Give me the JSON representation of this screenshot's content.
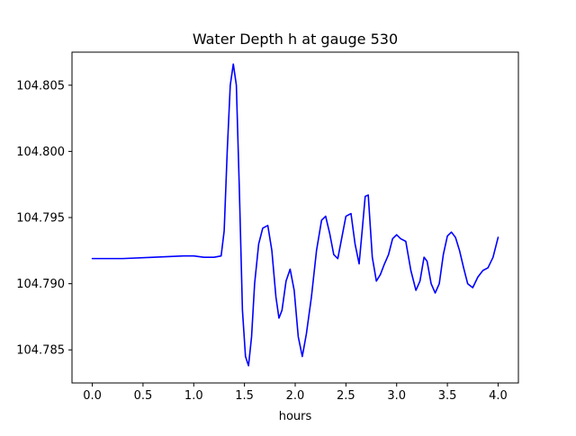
{
  "chart_data": {
    "type": "line",
    "title": "Water Depth h at gauge 530",
    "xlabel": "hours",
    "ylabel": "",
    "xlim": [
      -0.2,
      4.2
    ],
    "ylim": [
      104.7825,
      104.8075
    ],
    "grid": false,
    "xticks": [
      0.0,
      0.5,
      1.0,
      1.5,
      2.0,
      2.5,
      3.0,
      3.5,
      4.0
    ],
    "xtick_labels": [
      "0.0",
      "0.5",
      "1.0",
      "1.5",
      "2.0",
      "2.5",
      "3.0",
      "3.5",
      "4.0"
    ],
    "yticks": [
      104.785,
      104.79,
      104.795,
      104.8,
      104.805
    ],
    "ytick_labels": [
      "104.785",
      "104.790",
      "104.795",
      "104.800",
      "104.805"
    ],
    "series": [
      {
        "color": "#0000ff",
        "x": [
          0.0,
          0.3,
          0.6,
          0.9,
          1.0,
          1.1,
          1.2,
          1.27,
          1.3,
          1.33,
          1.36,
          1.39,
          1.42,
          1.45,
          1.48,
          1.51,
          1.54,
          1.57,
          1.6,
          1.64,
          1.68,
          1.73,
          1.77,
          1.81,
          1.84,
          1.87,
          1.91,
          1.95,
          1.99,
          2.03,
          2.07,
          2.11,
          2.16,
          2.21,
          2.26,
          2.3,
          2.34,
          2.38,
          2.42,
          2.46,
          2.5,
          2.55,
          2.59,
          2.63,
          2.66,
          2.69,
          2.72,
          2.76,
          2.8,
          2.84,
          2.88,
          2.92,
          2.96,
          3.0,
          3.04,
          3.09,
          3.14,
          3.19,
          3.23,
          3.27,
          3.3,
          3.34,
          3.38,
          3.42,
          3.46,
          3.5,
          3.54,
          3.58,
          3.62,
          3.66,
          3.7,
          3.75,
          3.8,
          3.85,
          3.9,
          3.95,
          4.0
        ],
        "y": [
          104.7919,
          104.7919,
          104.792,
          104.7921,
          104.7921,
          104.792,
          104.792,
          104.7921,
          104.794,
          104.8,
          104.805,
          104.8066,
          104.805,
          104.797,
          104.788,
          104.7845,
          104.7838,
          104.786,
          104.79,
          104.793,
          104.7942,
          104.7944,
          104.7925,
          104.789,
          104.7874,
          104.788,
          104.7902,
          104.7911,
          104.7895,
          104.786,
          104.7845,
          104.7862,
          104.789,
          104.7925,
          104.7948,
          104.7951,
          104.7938,
          104.7922,
          104.7919,
          104.7935,
          104.7951,
          104.7953,
          104.793,
          104.7915,
          104.794,
          104.7966,
          104.7967,
          104.792,
          104.7902,
          104.7907,
          104.7915,
          104.7922,
          104.7934,
          104.7937,
          104.7934,
          104.7932,
          104.791,
          104.7895,
          104.7902,
          104.792,
          104.7917,
          104.79,
          104.7893,
          104.79,
          104.7922,
          104.7936,
          104.7939,
          104.7935,
          104.7925,
          104.7912,
          104.79,
          104.7897,
          104.7905,
          104.791,
          104.7912,
          104.792,
          104.7935
        ]
      }
    ]
  }
}
